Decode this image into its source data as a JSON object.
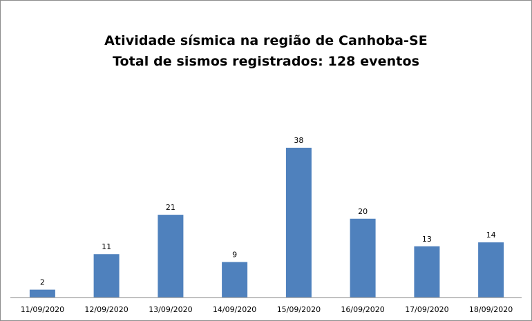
{
  "chart_data": {
    "type": "bar",
    "title": "Atividade sísmica na região de Canhoba-SE",
    "subtitle": "Total de sismos registrados: 128 eventos",
    "categories": [
      "11/09/2020",
      "12/09/2020",
      "13/09/2020",
      "14/09/2020",
      "15/09/2020",
      "16/09/2020",
      "17/09/2020",
      "18/09/2020"
    ],
    "values": [
      2,
      11,
      21,
      9,
      38,
      20,
      13,
      14
    ],
    "xlabel": "",
    "ylabel": "",
    "ylim": [
      0,
      38
    ],
    "data_labels": true,
    "grid": false,
    "legend": "none",
    "bar_color": "#4f81bd"
  }
}
